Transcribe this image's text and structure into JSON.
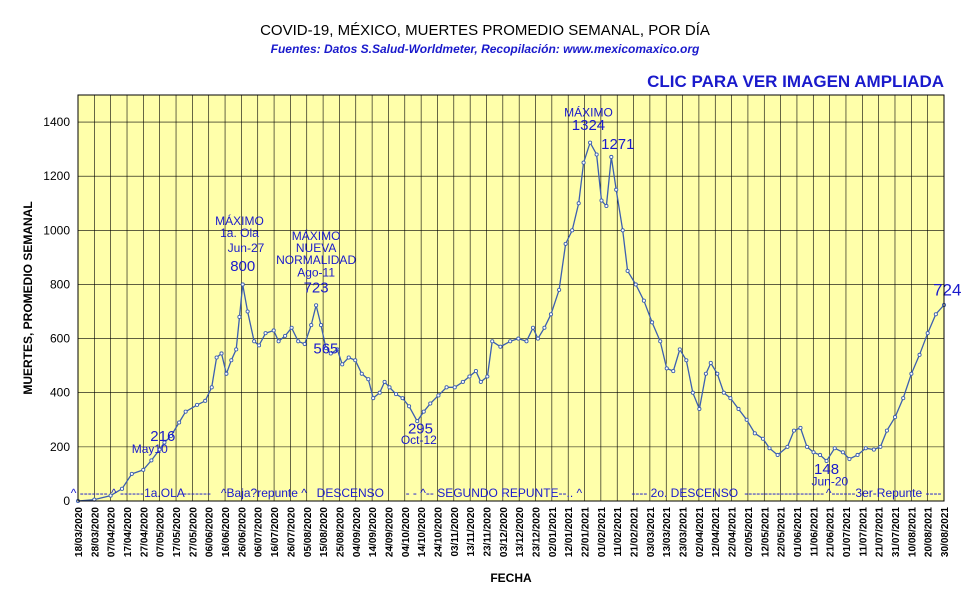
{
  "header": {
    "title": "COVID-19, MÉXICO, MUERTES PROMEDIO SEMANAL, POR DÍA",
    "subtitle": "Fuentes:  Datos S.Salud-Worldmeter,  Recopilación: www.mexicomaxico.org",
    "link": "CLIC PARA VER IMAGEN AMPLIADA"
  },
  "colors": {
    "plot_bg": "#FFFFAA",
    "series": "#3C5FB0",
    "annotation": "#1A1ACC",
    "link": "#1A1ACC"
  },
  "chart_data": {
    "type": "line",
    "xlabel": "FECHA",
    "ylabel": "MUERTES, PROMEDIO SEMANAL",
    "ylim": [
      0,
      1500
    ],
    "yticks": [
      0,
      200,
      400,
      600,
      800,
      1000,
      1200,
      1400
    ],
    "grid": true,
    "x_tick_labels": [
      "18/03/2020",
      "28/03/2020",
      "07/04/2020",
      "17/04/2020",
      "27/04/2020",
      "07/05/2020",
      "17/05/2020",
      "27/05/2020",
      "06/06/2020",
      "16/06/2020",
      "26/06/2020",
      "06/07/2020",
      "16/07/2020",
      "26/07/2020",
      "05/08/2020",
      "15/08/2020",
      "25/08/2020",
      "04/09/2020",
      "14/09/2020",
      "24/09/2020",
      "04/10/2020",
      "14/10/2020",
      "24/10/2020",
      "03/11/2020",
      "13/11/2020",
      "23/11/2020",
      "03/12/2020",
      "13/12/2020",
      "23/12/2020",
      "02/01/2021",
      "12/01/2021",
      "22/01/2021",
      "01/02/2021",
      "11/02/2021",
      "21/02/2021",
      "03/03/2021",
      "13/03/2021",
      "23/03/2021",
      "02/04/2021",
      "12/04/2021",
      "22/04/2021",
      "02/05/2021",
      "12/05/2021",
      "22/05/2021",
      "01/06/2021",
      "11/06/2021",
      "21/06/2021",
      "01/07/2021",
      "11/07/2021",
      "21/07/2021",
      "31/07/2021",
      "10/08/2021",
      "20/08/2021",
      "30/08/2021"
    ],
    "x_start": "2020-03-18",
    "x_end": "2021-08-31",
    "series": [
      {
        "points": [
          [
            "2020-03-18",
            0
          ],
          [
            "2020-03-28",
            5
          ],
          [
            "2020-04-07",
            20
          ],
          [
            "2020-04-14",
            45
          ],
          [
            "2020-04-20",
            100
          ],
          [
            "2020-04-27",
            115
          ],
          [
            "2020-05-02",
            150
          ],
          [
            "2020-05-07",
            190
          ],
          [
            "2020-05-10",
            216
          ],
          [
            "2020-05-14",
            240
          ],
          [
            "2020-05-19",
            290
          ],
          [
            "2020-05-23",
            330
          ],
          [
            "2020-05-30",
            355
          ],
          [
            "2020-06-04",
            370
          ],
          [
            "2020-06-08",
            420
          ],
          [
            "2020-06-11",
            530
          ],
          [
            "2020-06-14",
            545
          ],
          [
            "2020-06-17",
            470
          ],
          [
            "2020-06-20",
            520
          ],
          [
            "2020-06-23",
            560
          ],
          [
            "2020-06-25",
            680
          ],
          [
            "2020-06-27",
            800
          ],
          [
            "2020-06-30",
            700
          ],
          [
            "2020-07-04",
            590
          ],
          [
            "2020-07-07",
            575
          ],
          [
            "2020-07-11",
            620
          ],
          [
            "2020-07-16",
            630
          ],
          [
            "2020-07-19",
            590
          ],
          [
            "2020-07-23",
            610
          ],
          [
            "2020-07-27",
            640
          ],
          [
            "2020-07-31",
            590
          ],
          [
            "2020-08-04",
            580
          ],
          [
            "2020-08-08",
            650
          ],
          [
            "2020-08-11",
            723
          ],
          [
            "2020-08-14",
            650
          ],
          [
            "2020-08-17",
            565
          ],
          [
            "2020-08-20",
            545
          ],
          [
            "2020-08-24",
            560
          ],
          [
            "2020-08-27",
            505
          ],
          [
            "2020-08-31",
            530
          ],
          [
            "2020-09-04",
            520
          ],
          [
            "2020-09-08",
            470
          ],
          [
            "2020-09-12",
            450
          ],
          [
            "2020-09-15",
            380
          ],
          [
            "2020-09-19",
            400
          ],
          [
            "2020-09-22",
            440
          ],
          [
            "2020-09-25",
            420
          ],
          [
            "2020-09-29",
            395
          ],
          [
            "2020-10-03",
            380
          ],
          [
            "2020-10-07",
            350
          ],
          [
            "2020-10-12",
            295
          ],
          [
            "2020-10-16",
            330
          ],
          [
            "2020-10-20",
            360
          ],
          [
            "2020-10-25",
            390
          ],
          [
            "2020-10-30",
            420
          ],
          [
            "2020-11-04",
            420
          ],
          [
            "2020-11-09",
            440
          ],
          [
            "2020-11-13",
            460
          ],
          [
            "2020-11-17",
            480
          ],
          [
            "2020-11-20",
            440
          ],
          [
            "2020-11-24",
            460
          ],
          [
            "2020-11-27",
            590
          ],
          [
            "2020-12-02",
            570
          ],
          [
            "2020-12-08",
            590
          ],
          [
            "2020-12-13",
            600
          ],
          [
            "2020-12-18",
            590
          ],
          [
            "2020-12-22",
            640
          ],
          [
            "2020-12-25",
            600
          ],
          [
            "2020-12-29",
            640
          ],
          [
            "2021-01-02",
            690
          ],
          [
            "2021-01-07",
            780
          ],
          [
            "2021-01-11",
            950
          ],
          [
            "2021-01-15",
            1000
          ],
          [
            "2021-01-19",
            1100
          ],
          [
            "2021-01-22",
            1250
          ],
          [
            "2021-01-26",
            1324
          ],
          [
            "2021-01-30",
            1280
          ],
          [
            "2021-02-02",
            1110
          ],
          [
            "2021-02-05",
            1090
          ],
          [
            "2021-02-08",
            1271
          ],
          [
            "2021-02-11",
            1150
          ],
          [
            "2021-02-15",
            1000
          ],
          [
            "2021-02-18",
            850
          ],
          [
            "2021-02-23",
            800
          ],
          [
            "2021-02-28",
            740
          ],
          [
            "2021-03-05",
            660
          ],
          [
            "2021-03-10",
            590
          ],
          [
            "2021-03-14",
            490
          ],
          [
            "2021-03-18",
            480
          ],
          [
            "2021-03-22",
            560
          ],
          [
            "2021-03-26",
            520
          ],
          [
            "2021-03-30",
            400
          ],
          [
            "2021-04-03",
            340
          ],
          [
            "2021-04-07",
            470
          ],
          [
            "2021-04-10",
            510
          ],
          [
            "2021-04-14",
            470
          ],
          [
            "2021-04-18",
            400
          ],
          [
            "2021-04-22",
            380
          ],
          [
            "2021-04-27",
            340
          ],
          [
            "2021-05-02",
            300
          ],
          [
            "2021-05-07",
            250
          ],
          [
            "2021-05-12",
            230
          ],
          [
            "2021-05-16",
            195
          ],
          [
            "2021-05-21",
            170
          ],
          [
            "2021-05-27",
            200
          ],
          [
            "2021-05-31",
            260
          ],
          [
            "2021-06-04",
            270
          ],
          [
            "2021-06-08",
            200
          ],
          [
            "2021-06-12",
            180
          ],
          [
            "2021-06-16",
            170
          ],
          [
            "2021-06-20",
            148
          ],
          [
            "2021-06-25",
            195
          ],
          [
            "2021-06-30",
            180
          ],
          [
            "2021-07-04",
            155
          ],
          [
            "2021-07-09",
            170
          ],
          [
            "2021-07-14",
            195
          ],
          [
            "2021-07-19",
            190
          ],
          [
            "2021-07-23",
            200
          ],
          [
            "2021-07-27",
            260
          ],
          [
            "2021-08-01",
            310
          ],
          [
            "2021-08-06",
            380
          ],
          [
            "2021-08-11",
            470
          ],
          [
            "2021-08-16",
            540
          ],
          [
            "2021-08-21",
            620
          ],
          [
            "2021-08-26",
            690
          ],
          [
            "2021-08-31",
            724
          ]
        ]
      }
    ],
    "annotations": [
      {
        "text": "May10",
        "x": "2020-05-01",
        "y": 178,
        "size": 12
      },
      {
        "text": "216",
        "x": "2020-05-09",
        "y": 222,
        "size": 15
      },
      {
        "text": "MÁXIMO",
        "x": "2020-06-25",
        "y": 1020,
        "size": 12
      },
      {
        "text": "1a. Ola",
        "x": "2020-06-25",
        "y": 975,
        "size": 12
      },
      {
        "text": "Jun-27",
        "x": "2020-06-29",
        "y": 920,
        "size": 12
      },
      {
        "text": "800",
        "x": "2020-06-27",
        "y": 850,
        "size": 15
      },
      {
        "text": "MÁXIMO",
        "x": "2020-08-11",
        "y": 965,
        "size": 12
      },
      {
        "text": "NUEVA",
        "x": "2020-08-11",
        "y": 920,
        "size": 12
      },
      {
        "text": "NORMALIDAD",
        "x": "2020-08-11",
        "y": 875,
        "size": 12
      },
      {
        "text": "Ago-11",
        "x": "2020-08-11",
        "y": 830,
        "size": 12
      },
      {
        "text": "723",
        "x": "2020-08-11",
        "y": 770,
        "size": 15
      },
      {
        "text": "565",
        "x": "2020-08-17",
        "y": 545,
        "size": 15
      },
      {
        "text": "295",
        "x": "2020-10-14",
        "y": 250,
        "size": 15
      },
      {
        "text": "Oct-12",
        "x": "2020-10-13",
        "y": 210,
        "size": 12
      },
      {
        "text": "MÁXIMO",
        "x": "2021-01-25",
        "y": 1420,
        "size": 12
      },
      {
        "text": "1324",
        "x": "2021-01-25",
        "y": 1370,
        "size": 15
      },
      {
        "text": "1271",
        "x": "2021-02-12",
        "y": 1300,
        "size": 15
      },
      {
        "text": "148",
        "x": "2021-06-20",
        "y": 100,
        "size": 15
      },
      {
        "text": "Jun-20",
        "x": "2021-06-22",
        "y": 58,
        "size": 12
      },
      {
        "text": "724",
        "x": "2021-09-02",
        "y": 760,
        "size": 17
      }
    ],
    "phase_labels": [
      {
        "text": "^ ------- ^ ------",
        "x": "2020-04-05",
        "size": 12
      },
      {
        "text": "1a.OLA",
        "x": "2020-05-10",
        "size": 12
      },
      {
        "text": "-------",
        "x": "2020-05-30",
        "size": 12
      },
      {
        "text": "^Baja?repunte ^",
        "x": "2020-07-10",
        "size": 12
      },
      {
        "text": "DESCENSO",
        "x": "2020-09-01",
        "size": 12
      },
      {
        "text": "- - ^-- SEGUNDO REPUNTE--.. ^",
        "x": "2020-11-28",
        "size": 12
      },
      {
        "text": "---- 2o. DESCENSO",
        "x": "2021-03-25",
        "size": 12
      },
      {
        "text": "--------------------",
        "x": "2021-05-25",
        "size": 12
      },
      {
        "text": "^------3er-Repunte ----",
        "x": "2021-07-25",
        "size": 12
      }
    ]
  }
}
